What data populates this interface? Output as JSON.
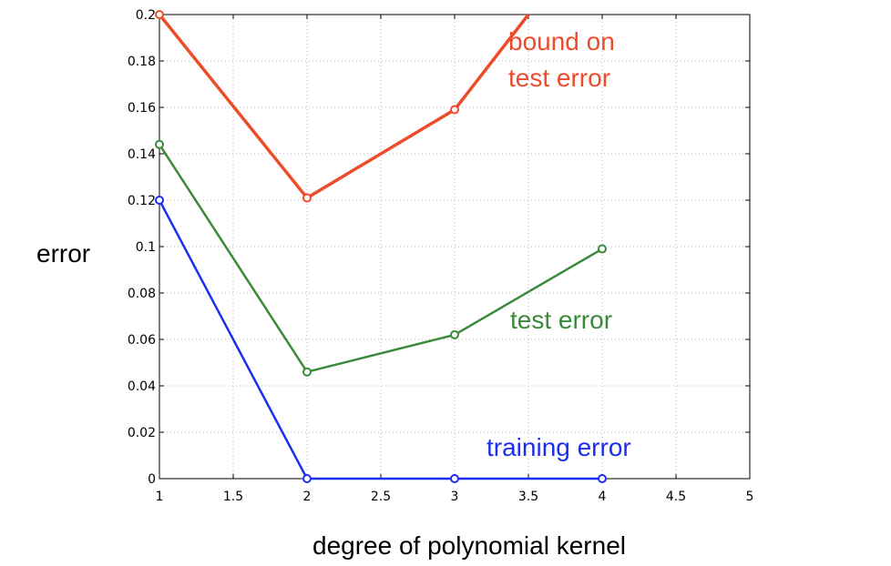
{
  "chart_data": {
    "type": "line",
    "xlabel": "degree of polynomial kernel",
    "ylabel": "error",
    "xlim": [
      1,
      5
    ],
    "ylim": [
      0,
      0.2
    ],
    "x_ticks": [
      "1",
      "1.5",
      "2",
      "2.5",
      "3",
      "3.5",
      "4",
      "4.5",
      "5"
    ],
    "y_ticks": [
      "0",
      "0.02",
      "0.04",
      "0.06",
      "0.08",
      "0.1",
      "0.12",
      "0.14",
      "0.16",
      "0.18",
      "0.2"
    ],
    "grid": true,
    "series": [
      {
        "name": "bound on test error",
        "label_lines": [
          "bound on",
          "test error"
        ],
        "color": "#ee4b2b",
        "x": [
          1,
          2,
          3,
          3.5
        ],
        "y": [
          0.2,
          0.121,
          0.159,
          0.2
        ]
      },
      {
        "name": "test error",
        "label_lines": [
          "test error"
        ],
        "color": "#3a8a3a",
        "x": [
          1,
          2,
          3,
          4
        ],
        "y": [
          0.144,
          0.046,
          0.062,
          0.099
        ]
      },
      {
        "name": "training error",
        "label_lines": [
          "training error"
        ],
        "color": "#1c2ff0",
        "x": [
          1,
          2,
          3,
          4
        ],
        "y": [
          0.12,
          0,
          0,
          0
        ]
      }
    ]
  }
}
